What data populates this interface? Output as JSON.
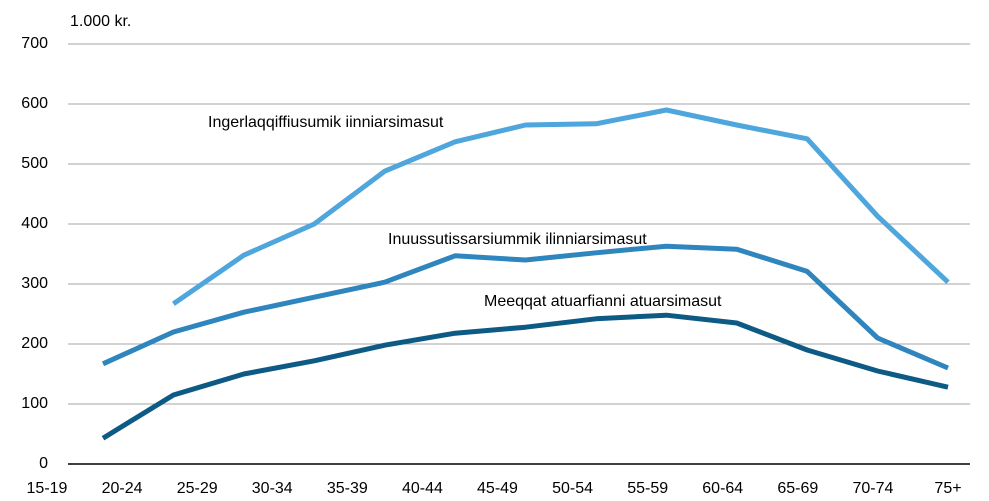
{
  "chart_data": {
    "type": "line",
    "y_label": "1.000 kr.",
    "categories": [
      "15-19",
      "20-24",
      "25-29",
      "30-34",
      "35-39",
      "40-44",
      "45-49",
      "50-54",
      "55-59",
      "60-64",
      "65-69",
      "70-74",
      "75+"
    ],
    "series": [
      {
        "name": "Ingerlaqqiffiusumik iinniarsimasut",
        "color": "#4fa6dd",
        "values": [
          null,
          267,
          348,
          400,
          488,
          537,
          565,
          567,
          590,
          565,
          542,
          413,
          303
        ]
      },
      {
        "name": "Inuussutissarsiummik ilinniarsimasut",
        "color": "#2f85bd",
        "values": [
          167,
          220,
          253,
          278,
          303,
          347,
          340,
          352,
          363,
          358,
          321,
          210,
          160
        ]
      },
      {
        "name": "Meeqqat atuarfianni atuarsimasut",
        "color": "#0d5a85",
        "values": [
          43,
          115,
          150,
          172,
          198,
          218,
          228,
          242,
          248,
          235,
          190,
          155,
          128
        ]
      }
    ],
    "ylim": [
      0,
      700
    ],
    "yticks": [
      0,
      100,
      200,
      300,
      400,
      500,
      600,
      700
    ],
    "grid": true
  }
}
